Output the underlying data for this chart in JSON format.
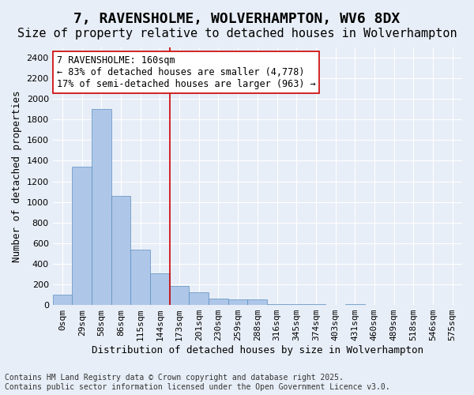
{
  "title_line1": "7, RAVENSHOLME, WOLVERHAMPTON, WV6 8DX",
  "title_line2": "Size of property relative to detached houses in Wolverhampton",
  "xlabel": "Distribution of detached houses by size in Wolverhampton",
  "ylabel": "Number of detached properties",
  "bin_labels": [
    "0sqm",
    "29sqm",
    "58sqm",
    "86sqm",
    "115sqm",
    "144sqm",
    "173sqm",
    "201sqm",
    "230sqm",
    "259sqm",
    "288sqm",
    "316sqm",
    "345sqm",
    "374sqm",
    "403sqm",
    "431sqm",
    "460sqm",
    "489sqm",
    "518sqm",
    "546sqm",
    "575sqm"
  ],
  "bar_values": [
    100,
    1340,
    1900,
    1060,
    540,
    310,
    185,
    125,
    65,
    55,
    55,
    10,
    10,
    10,
    0,
    10,
    0,
    0,
    0,
    0,
    0
  ],
  "bar_color": "#aec6e8",
  "bar_edge_color": "#5a8fc0",
  "background_color": "#e8eef7",
  "grid_color": "#ffffff",
  "property_line_x": 5.5,
  "property_label": "7 RAVENSHOLME: 160sqm",
  "annotation_line1": "← 83% of detached houses are smaller (4,778)",
  "annotation_line2": "17% of semi-detached houses are larger (963) →",
  "annotation_box_color": "#ffffff",
  "annotation_box_edge": "#cc0000",
  "vline_color": "#cc0000",
  "ylim": [
    0,
    2500
  ],
  "yticks": [
    0,
    200,
    400,
    600,
    800,
    1000,
    1200,
    1400,
    1600,
    1800,
    2000,
    2200,
    2400
  ],
  "footer_line1": "Contains HM Land Registry data © Crown copyright and database right 2025.",
  "footer_line2": "Contains public sector information licensed under the Open Government Licence v3.0.",
  "title_fontsize": 13,
  "subtitle_fontsize": 11,
  "label_fontsize": 9,
  "tick_fontsize": 8,
  "footer_fontsize": 7
}
